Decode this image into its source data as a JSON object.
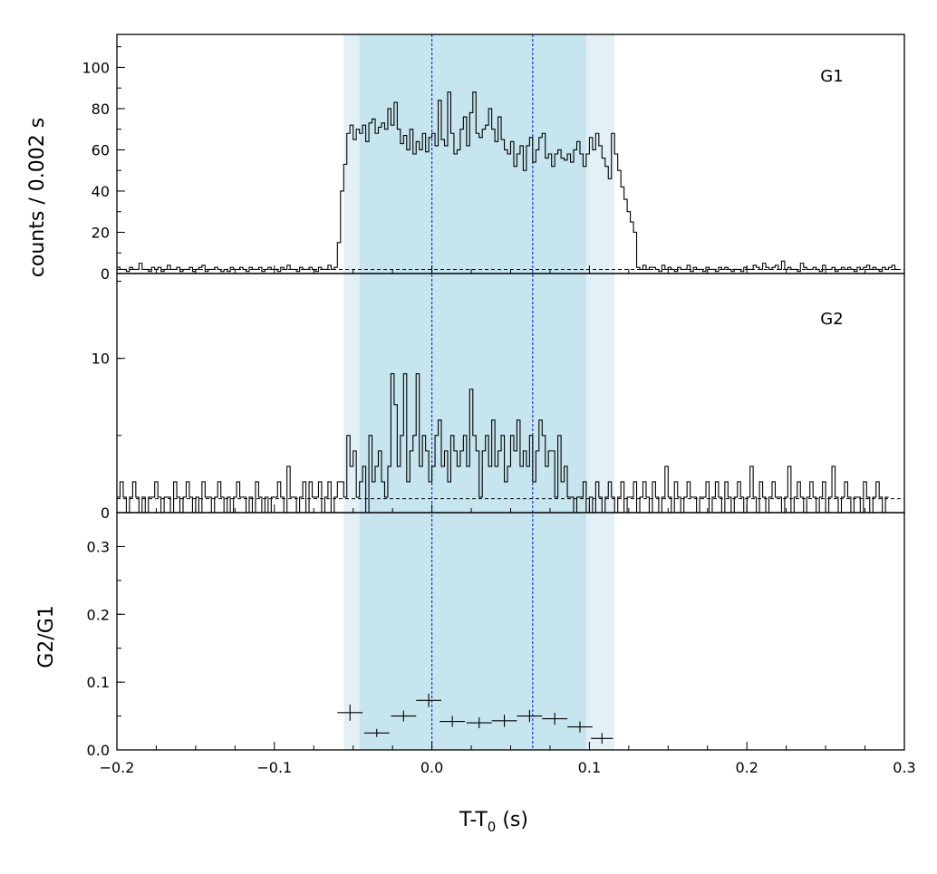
{
  "chart_data": {
    "type": "line",
    "x_axis": {
      "label": "T-T",
      "label_subscript": "0",
      "label_suffix": " (s)",
      "xlim": [
        -0.2,
        0.3
      ],
      "ticks": [
        -0.2,
        -0.1,
        0.0,
        0.1,
        0.2,
        0.3
      ],
      "tick_labels": [
        "−0.2",
        "−0.1",
        "0.0",
        "0.1",
        "0.2",
        "0.3"
      ]
    },
    "shaded_regions": [
      {
        "x_range": [
          -0.056,
          0.116
        ],
        "color": "#e3f1f7"
      },
      {
        "x_range": [
          -0.046,
          0.098
        ],
        "color": "#c7e5ee"
      }
    ],
    "vertical_lines": [
      0.0,
      0.064
    ],
    "vertical_line_color": "#2233dd",
    "panels": [
      {
        "id": "G1",
        "label": "G1",
        "type": "histogram",
        "ylim": [
          0,
          116
        ],
        "yticks": [
          0,
          20,
          40,
          60,
          80,
          100
        ],
        "ytick_labels": [
          "0",
          "20",
          "40",
          "60",
          "80",
          "100"
        ],
        "background_level": 2,
        "bin_width": 0.002,
        "x_start": -0.2,
        "counts": [
          3,
          2,
          2,
          1,
          3,
          2,
          2,
          5,
          2,
          2,
          1,
          3,
          2,
          3,
          1,
          2,
          4,
          2,
          2,
          3,
          1,
          2,
          2,
          3,
          1,
          2,
          3,
          4,
          1,
          2,
          2,
          3,
          2,
          1,
          2,
          1,
          3,
          2,
          2,
          3,
          2,
          1,
          3,
          2,
          2,
          3,
          1,
          2,
          3,
          2,
          2,
          1,
          3,
          2,
          4,
          2,
          2,
          1,
          3,
          2,
          2,
          3,
          2,
          1,
          3,
          2,
          2,
          4,
          2,
          3,
          15,
          40,
          53,
          68,
          72,
          65,
          70,
          68,
          72,
          64,
          73,
          75,
          68,
          71,
          73,
          70,
          80,
          72,
          83,
          70,
          63,
          67,
          60,
          70,
          58,
          64,
          60,
          68,
          59,
          66,
          68,
          62,
          84,
          65,
          62,
          88,
          68,
          58,
          60,
          70,
          76,
          62,
          78,
          88,
          68,
          66,
          70,
          72,
          80,
          70,
          64,
          76,
          65,
          60,
          58,
          64,
          52,
          58,
          62,
          50,
          62,
          66,
          54,
          60,
          66,
          68,
          56,
          58,
          52,
          58,
          60,
          56,
          55,
          58,
          54,
          60,
          64,
          58,
          52,
          58,
          66,
          60,
          68,
          62,
          56,
          52,
          46,
          68,
          58,
          50,
          42,
          36,
          30,
          25,
          20,
          3,
          2,
          4,
          2,
          3,
          3,
          2,
          1,
          4,
          2,
          3,
          2,
          1,
          3,
          2,
          2,
          4,
          1,
          3,
          2,
          2,
          1,
          3,
          2,
          2,
          1,
          3,
          2,
          3,
          2,
          1,
          2,
          2,
          1,
          3,
          2,
          2,
          4,
          3,
          2,
          5,
          3,
          2,
          3,
          4,
          2,
          6,
          2,
          3,
          2,
          2,
          1,
          5,
          3,
          2,
          2,
          3,
          2,
          1,
          4,
          2,
          2,
          3,
          1,
          2,
          3,
          2,
          3,
          2,
          1,
          3,
          2,
          3,
          4,
          2,
          3,
          2,
          1,
          3,
          2,
          3,
          4,
          2
        ]
      },
      {
        "id": "G2",
        "label": "G2",
        "type": "histogram",
        "ylim": [
          0,
          15.5
        ],
        "yticks": [
          0,
          10
        ],
        "ytick_labels": [
          "0",
          "10"
        ],
        "background_level": 0.9,
        "bin_width": 0.002,
        "x_start": -0.2,
        "counts": [
          1,
          2,
          1,
          0,
          1,
          2,
          1,
          0,
          1,
          0,
          1,
          1,
          2,
          1,
          0,
          1,
          1,
          0,
          2,
          1,
          0,
          1,
          2,
          1,
          0,
          1,
          0,
          2,
          1,
          1,
          0,
          1,
          2,
          1,
          0,
          1,
          0,
          1,
          2,
          1,
          1,
          0,
          1,
          0,
          2,
          1,
          0,
          1,
          0,
          1,
          1,
          2,
          1,
          0,
          3,
          1,
          1,
          0,
          1,
          2,
          0,
          2,
          1,
          1,
          2,
          0,
          1,
          2,
          0,
          1,
          2,
          2,
          1,
          5,
          3,
          4,
          1,
          2,
          3,
          0,
          5,
          2,
          3,
          4,
          2,
          1,
          3,
          9,
          7,
          3,
          5,
          9,
          2,
          4,
          5,
          9,
          3,
          5,
          4,
          2,
          3,
          5,
          6,
          3,
          4,
          2,
          5,
          4,
          3,
          4,
          5,
          3,
          8,
          5,
          4,
          1,
          4,
          5,
          3,
          6,
          3,
          4,
          5,
          2,
          3,
          5,
          4,
          6,
          3,
          4,
          3,
          5,
          2,
          4,
          6,
          5,
          3,
          4,
          4,
          1,
          5,
          2,
          3,
          1,
          1,
          0,
          1,
          1,
          2,
          0,
          1,
          0,
          2,
          1,
          0,
          1,
          2,
          1,
          0,
          1,
          2,
          0,
          1,
          1,
          2,
          0,
          1,
          2,
          1,
          0,
          2,
          1,
          0,
          1,
          3,
          1,
          0,
          2,
          1,
          0,
          1,
          2,
          1,
          1,
          0,
          1,
          1,
          2,
          0,
          1,
          2,
          1,
          0,
          2,
          1,
          0,
          1,
          2,
          1,
          0,
          1,
          3,
          1,
          0,
          2,
          1,
          0,
          1,
          2,
          1,
          1,
          0,
          1,
          3,
          0,
          1,
          2,
          1,
          0,
          1,
          2,
          1,
          0,
          1,
          2,
          0,
          1,
          3,
          1,
          0,
          1,
          2,
          1,
          0,
          1,
          1,
          0,
          2,
          1,
          0,
          1,
          2,
          1,
          0,
          1
        ]
      },
      {
        "id": "ratio",
        "label": "",
        "ylabel": "G2/G1",
        "type": "errorbar",
        "ylim": [
          0,
          0.35
        ],
        "yticks": [
          0.0,
          0.1,
          0.2,
          0.3
        ],
        "ytick_labels": [
          "0.0",
          "0.1",
          "0.2",
          "0.3"
        ],
        "points": [
          {
            "x": -0.052,
            "y": 0.055,
            "xerr": 0.008,
            "yerr": 0.012
          },
          {
            "x": -0.035,
            "y": 0.025,
            "xerr": 0.008,
            "yerr": 0.006
          },
          {
            "x": -0.018,
            "y": 0.05,
            "xerr": 0.008,
            "yerr": 0.008
          },
          {
            "x": -0.002,
            "y": 0.073,
            "xerr": 0.008,
            "yerr": 0.01
          },
          {
            "x": 0.013,
            "y": 0.042,
            "xerr": 0.008,
            "yerr": 0.008
          },
          {
            "x": 0.03,
            "y": 0.04,
            "xerr": 0.008,
            "yerr": 0.008
          },
          {
            "x": 0.046,
            "y": 0.043,
            "xerr": 0.008,
            "yerr": 0.009
          },
          {
            "x": 0.062,
            "y": 0.05,
            "xerr": 0.008,
            "yerr": 0.009
          },
          {
            "x": 0.078,
            "y": 0.046,
            "xerr": 0.008,
            "yerr": 0.009
          },
          {
            "x": 0.094,
            "y": 0.034,
            "xerr": 0.008,
            "yerr": 0.008
          },
          {
            "x": 0.108,
            "y": 0.017,
            "xerr": 0.007,
            "yerr": 0.008
          }
        ]
      }
    ],
    "shared_ylabel": "counts /  0.002 s"
  }
}
